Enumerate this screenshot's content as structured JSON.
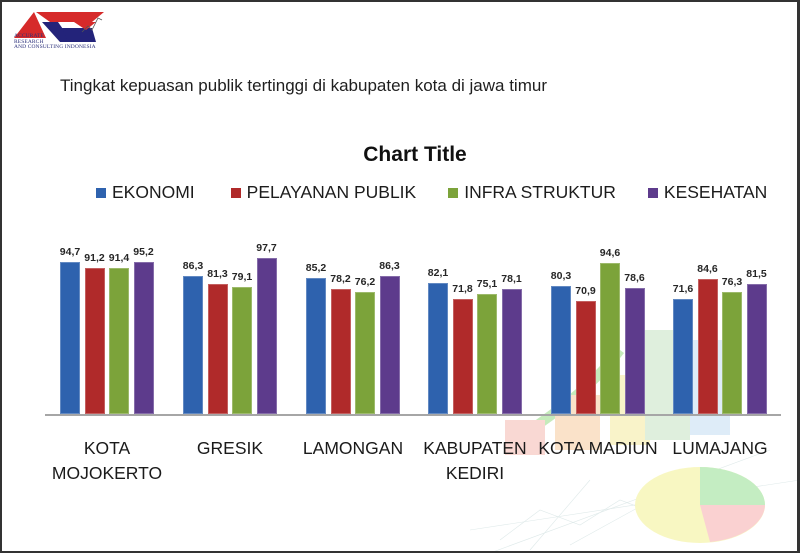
{
  "header": {
    "logo_text": [
      "ACCURATE",
      "RESEARCH",
      "AND CONSULTING INDONESIA"
    ],
    "subtitle": "Tingkat kepuasan publik tertinggi di kabupaten kota di jawa timur"
  },
  "colors": {
    "ekonomi": "#2E62AE",
    "pelayanan_publik": "#B02A2A",
    "infra_struktur": "#7CA33A",
    "kesehatan": "#5D3B8C",
    "baseline": "#A6A6A6"
  },
  "chart_data": {
    "type": "bar",
    "title": "Chart Title",
    "xlabel": "",
    "ylabel": "",
    "ylim": [
      0,
      100
    ],
    "grid": false,
    "legend_position": "top",
    "categories": [
      "KOTA MOJOKERTO",
      "GRESIK",
      "LAMONGAN",
      "KABUPATEN KEDIRI",
      "KOTA MADIUN",
      "LUMAJANG"
    ],
    "category_lines": [
      [
        "KOTA",
        "MOJOKERTO"
      ],
      [
        "GRESIK"
      ],
      [
        "LAMONGAN"
      ],
      [
        "KABUPATEN",
        "KEDIRI"
      ],
      [
        "KOTA MADIUN"
      ],
      [
        "LUMAJANG"
      ]
    ],
    "series": [
      {
        "name": "EKONOMI",
        "color": "#2E62AE",
        "values": [
          94.7,
          86.3,
          85.2,
          82.1,
          80.3,
          71.6
        ],
        "labels": [
          "94,7",
          "86,3",
          "85,2",
          "82,1",
          "80,3",
          "71,6"
        ]
      },
      {
        "name": "PELAYANAN PUBLIK",
        "color": "#B02A2A",
        "values": [
          91.2,
          81.3,
          78.2,
          71.8,
          70.9,
          84.6
        ],
        "labels": [
          "91,2",
          "81,3",
          "78,2",
          "71,8",
          "70,9",
          "84,6"
        ]
      },
      {
        "name": "INFRA STRUKTUR",
        "color": "#7CA33A",
        "values": [
          91.4,
          79.1,
          76.2,
          75.1,
          94.6,
          76.3
        ],
        "labels": [
          "91,4",
          "79,1",
          "76,2",
          "75,1",
          "94,6",
          "76,3"
        ]
      },
      {
        "name": "KESEHATAN",
        "color": "#5D3B8C",
        "values": [
          95.2,
          97.7,
          86.3,
          78.1,
          78.6,
          81.5
        ],
        "labels": [
          "95,2",
          "97,7",
          "86,3",
          "78,1",
          "78,6",
          "81,5"
        ]
      }
    ]
  }
}
